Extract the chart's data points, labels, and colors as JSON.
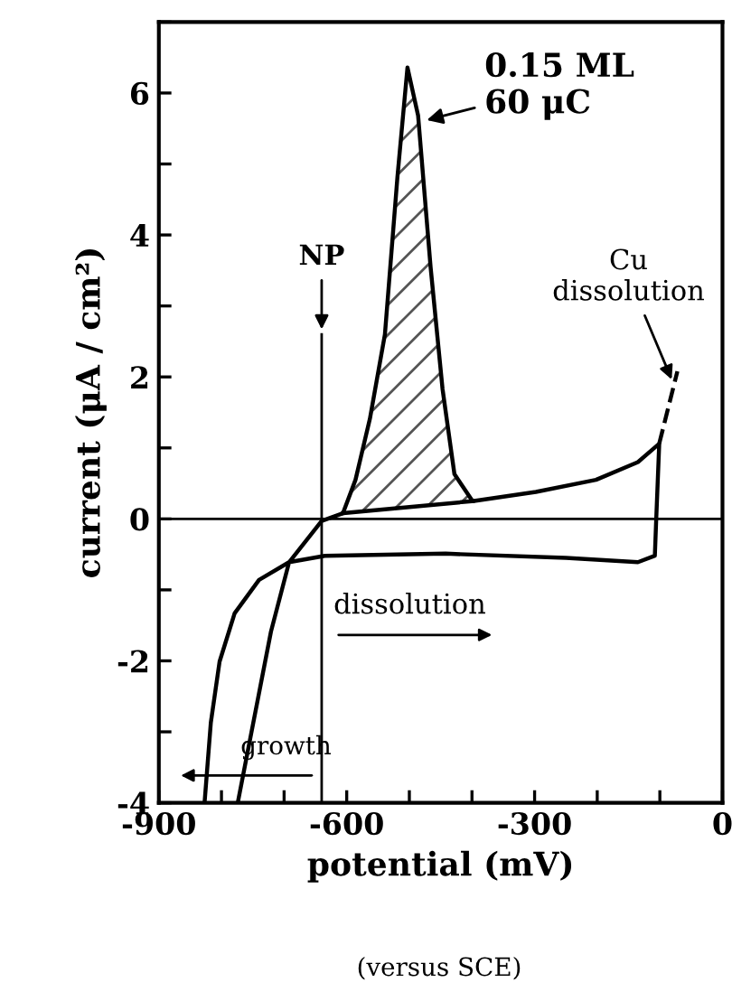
{
  "chart_data": {
    "type": "line",
    "xlabel": "potential (mV)",
    "ylabel": "current (μA / cm²)",
    "xlim": [
      -900,
      0
    ],
    "ylim": [
      -4,
      7
    ],
    "xticks": [
      -900,
      {
        "value": -800,
        "label": null
      },
      {
        "value": -700,
        "label": null
      },
      -600,
      {
        "value": -500,
        "label": null
      },
      {
        "value": -400,
        "label": null
      },
      -300,
      {
        "value": -200,
        "label": null
      },
      {
        "value": -100,
        "label": null
      },
      0
    ],
    "yticks": [
      -4,
      {
        "value": -3,
        "label": null
      },
      -2,
      {
        "value": -1,
        "label": null
      },
      0,
      {
        "value": 1,
        "label": null
      },
      2,
      {
        "value": 3,
        "label": null
      },
      4,
      {
        "value": 5,
        "label": null
      },
      6,
      {
        "value": 7,
        "label": null
      }
    ],
    "grid": false,
    "marker": "none",
    "line_style": "solid",
    "ref_lines": [
      {
        "axis": "y",
        "value": 0,
        "color": "#000000"
      },
      {
        "axis": "x",
        "value": -640,
        "color": "#000000"
      }
    ],
    "series": [
      {
        "color": "#000000",
        "x": [
          -774,
          -721,
          -692,
          -640,
          -606,
          -586,
          -563,
          -539,
          -519,
          -503,
          -486,
          -466,
          -447,
          -428,
          -399,
          -298,
          -202,
          -135,
          -101,
          -106,
          -108,
          -135,
          -250,
          -442,
          -635,
          -692,
          -740,
          -779,
          -803,
          -817,
          -827
        ],
        "values": [
          -4.0,
          -1.59,
          -0.61,
          -0.03,
          0.08,
          0.55,
          1.41,
          2.6,
          4.82,
          6.36,
          5.68,
          3.54,
          1.83,
          0.63,
          0.25,
          0.38,
          0.55,
          0.8,
          1.06,
          -0.05,
          -0.52,
          -0.61,
          -0.55,
          -0.49,
          -0.52,
          -0.61,
          -0.86,
          -1.33,
          -2.01,
          -2.87,
          -4.0
        ]
      },
      {
        "color": "#000000",
        "line_style": "dashed",
        "x": [
          -101,
          -72
        ],
        "values": [
          1.06,
          2.08
        ]
      },
      {
        "color": "#000000",
        "x": [
          -606,
          -399
        ],
        "values": [
          0.08,
          0.25
        ]
      }
    ],
    "annotations": [
      {
        "text": "0.15 ML\n60 μC",
        "x": -480,
        "y": 5.6
      },
      {
        "text": "NP",
        "x": -640,
        "y": 2.6
      },
      {
        "text": "Cu\ndissolution",
        "x": -78,
        "y": 1.9
      },
      "dissolution",
      "growth",
      "(versus SCE)"
    ]
  }
}
